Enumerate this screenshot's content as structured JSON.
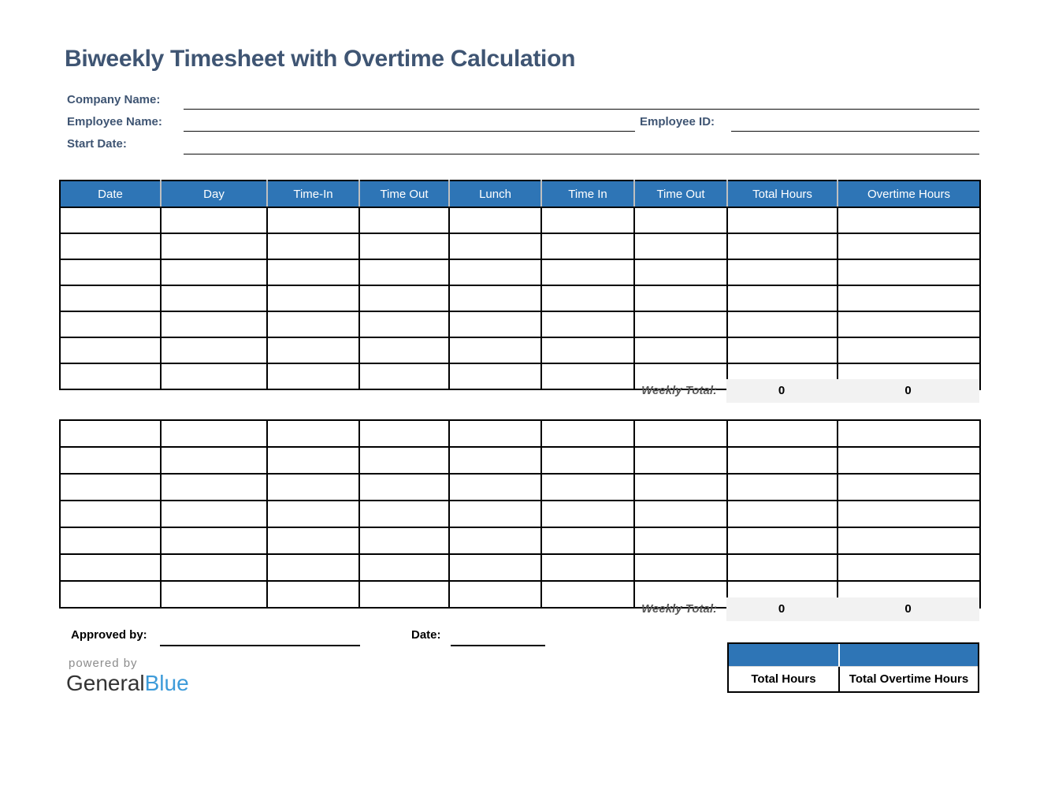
{
  "title": "Biweekly Timesheet with Overtime Calculation",
  "fields": {
    "company_name_label": "Company Name:",
    "employee_name_label": "Employee Name:",
    "employee_id_label": "Employee ID:",
    "start_date_label": "Start Date:"
  },
  "table": {
    "headers": [
      "Date",
      "Day",
      "Time-In",
      "Time Out",
      "Lunch",
      "Time In",
      "Time Out",
      "Total Hours",
      "Overtime Hours"
    ],
    "week1_empty_rows": 7,
    "week2_empty_rows": 7,
    "weekly_total_label": "Weekly Total:",
    "week1_total_hours": "0",
    "week1_overtime_hours": "0",
    "week2_total_hours": "0",
    "week2_overtime_hours": "0"
  },
  "signoff": {
    "approved_by_label": "Approved by:",
    "date_label": "Date:"
  },
  "branding": {
    "powered_by": "powered by",
    "brand_name_general": "General",
    "brand_name_blue": "Blue"
  },
  "summary": {
    "total_hours_label": "Total Hours",
    "total_overtime_hours_label": "Total Overtime Hours"
  },
  "colors": {
    "header_blue": "#2E75B6",
    "title_text": "#3F5573",
    "weekly_total_text": "#595959",
    "totals_background": "#F2F2F2",
    "brand_blue": "#3D9BD9"
  }
}
